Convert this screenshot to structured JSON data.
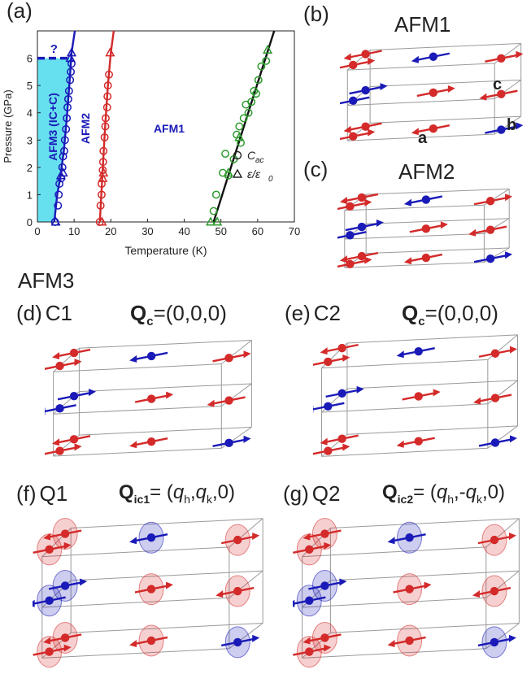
{
  "panels": {
    "a": {
      "label": "(a)"
    },
    "b": {
      "label": "(b)",
      "title": "AFM1",
      "axis_c": "c",
      "axis_b": "b",
      "axis_a": "a"
    },
    "c": {
      "label": "(c)",
      "title": "AFM2"
    },
    "afm3_heading": "AFM3",
    "d": {
      "label": "(d)",
      "name": "C1",
      "q_sym": "Q",
      "q_sub": "c",
      "q_val": "=(0,0,0)"
    },
    "e": {
      "label": "(e)",
      "name": "C2",
      "q_sym": "Q",
      "q_sub": "c",
      "q_val": "=(0,0,0)"
    },
    "f": {
      "label": "(f)",
      "name": "Q1",
      "q_sym": "Q",
      "q_sub": "ic1",
      "q_eq": "= (",
      "q_h": "q",
      "q_h_sub": "h",
      "q_sep1": ",",
      "q_k_prefix": "",
      "q_k": "q",
      "q_k_sub": "k",
      "q_end": ",0)"
    },
    "g": {
      "label": "(g)",
      "name": "Q2",
      "q_sym": "Q",
      "q_sub": "ic2",
      "q_eq": "= (",
      "q_h": "q",
      "q_h_sub": "h",
      "q_sep1": ",",
      "q_k_prefix": "-",
      "q_k": "q",
      "q_k_sub": "k",
      "q_end": ",0)"
    }
  },
  "colors": {
    "red": "#d42a2a",
    "blue": "#1a1ab8",
    "green": "#2e9a2e",
    "cyan": "#66e0ee",
    "box": "#9a9a9a"
  },
  "chart_data": {
    "type": "scatter",
    "xlabel": "Temperature (K)",
    "ylabel": "Pressure (GPa)",
    "xlim": [
      0,
      70
    ],
    "ylim": [
      0,
      7
    ],
    "xticks": [
      0,
      10,
      20,
      30,
      40,
      50,
      60,
      70
    ],
    "yticks": [
      0,
      1,
      2,
      3,
      4,
      5,
      6
    ],
    "region_labels": [
      "AFM3 (IC+C)",
      "AFM2",
      "AFM1"
    ],
    "question_mark": "?",
    "legend": [
      {
        "marker": "circle",
        "text": "C",
        "sub": "ac"
      },
      {
        "marker": "triangle",
        "text": "ε/ε",
        "sub": "0"
      }
    ],
    "series": [
      {
        "group": "AFM3-AFM2",
        "marker": "circle",
        "color": "blue",
        "points": [
          [
            4.8,
            0
          ],
          [
            5.6,
            0.6
          ],
          [
            5.8,
            1.0
          ],
          [
            6.0,
            1.4
          ],
          [
            6.5,
            1.6
          ],
          [
            6.8,
            2.0
          ],
          [
            7.0,
            2.4
          ],
          [
            7.3,
            2.6
          ],
          [
            7.5,
            3.0
          ],
          [
            7.8,
            3.4
          ],
          [
            8.0,
            3.8
          ],
          [
            8.2,
            4.2
          ],
          [
            8.4,
            4.5
          ],
          [
            8.6,
            4.8
          ],
          [
            8.9,
            5.2
          ],
          [
            9.1,
            5.5
          ],
          [
            9.3,
            5.8
          ]
        ]
      },
      {
        "group": "AFM3-AFM2",
        "marker": "triangle",
        "color": "blue",
        "points": [
          [
            5.0,
            0
          ],
          [
            6.4,
            1.7
          ],
          [
            7.0,
            1.8
          ],
          [
            9.0,
            6.0
          ],
          [
            9.3,
            6.2
          ]
        ]
      },
      {
        "group": "AFM2-AFM1",
        "marker": "circle",
        "color": "red",
        "points": [
          [
            17.0,
            0
          ],
          [
            17.2,
            0.6
          ],
          [
            17.5,
            1.0
          ],
          [
            17.5,
            1.4
          ],
          [
            17.8,
            1.9
          ],
          [
            17.9,
            2.2
          ],
          [
            18.0,
            2.6
          ],
          [
            18.3,
            3.1
          ],
          [
            18.5,
            3.5
          ],
          [
            18.6,
            3.8
          ],
          [
            19.0,
            4.2
          ],
          [
            19.1,
            4.6
          ],
          [
            19.2,
            5.0
          ],
          [
            19.5,
            5.4
          ]
        ]
      },
      {
        "group": "AFM2-AFM1",
        "marker": "triangle",
        "color": "red",
        "points": [
          [
            17.6,
            0
          ],
          [
            17.8,
            1.6
          ],
          [
            18.0,
            1.8
          ],
          [
            19.8,
            6.2
          ]
        ]
      },
      {
        "group": "AFM1-PM",
        "marker": "circle",
        "color": "green",
        "points": [
          [
            48.0,
            0.4
          ],
          [
            48.7,
            1.0
          ],
          [
            50.5,
            1.8
          ],
          [
            51.2,
            2.5
          ],
          [
            52.0,
            1.7
          ],
          [
            53.5,
            2.3
          ],
          [
            54.3,
            3.2
          ],
          [
            55.0,
            3.5
          ],
          [
            55.4,
            2.9
          ],
          [
            56.2,
            3.8
          ],
          [
            56.8,
            4.3
          ],
          [
            57.5,
            4.0
          ],
          [
            58.3,
            4.4
          ],
          [
            59.0,
            4.8
          ],
          [
            59.6,
            4.7
          ],
          [
            60.2,
            5.2
          ],
          [
            61.0,
            5.7
          ],
          [
            62.3,
            5.9
          ]
        ]
      },
      {
        "group": "AFM1-PM",
        "marker": "triangle",
        "color": "green",
        "points": [
          [
            47.2,
            0
          ],
          [
            49.0,
            0
          ],
          [
            52.0,
            1.8
          ],
          [
            55.0,
            3.1
          ],
          [
            62.7,
            6.3
          ]
        ]
      }
    ],
    "boundaries": [
      {
        "color": "blue",
        "points": [
          [
            4.6,
            0
          ],
          [
            5.4,
            1.0
          ],
          [
            6.2,
            1.6
          ],
          [
            7.2,
            2.6
          ],
          [
            8.0,
            3.8
          ],
          [
            8.8,
            5.2
          ],
          [
            9.3,
            6.2
          ],
          [
            10.2,
            7.0
          ]
        ]
      },
      {
        "color": "red",
        "points": [
          [
            17.0,
            0
          ],
          [
            17.5,
            1.2
          ],
          [
            17.9,
            2.2
          ],
          [
            18.5,
            3.6
          ],
          [
            19.2,
            5.0
          ],
          [
            20.0,
            6.2
          ],
          [
            20.8,
            7.0
          ]
        ]
      },
      {
        "color": "black",
        "points": [
          [
            48.0,
            0
          ],
          [
            64.5,
            7.0
          ]
        ]
      }
    ],
    "dashed_line": {
      "y": 6.0,
      "x0": 0,
      "x1": 9.5,
      "color": "blue"
    }
  }
}
